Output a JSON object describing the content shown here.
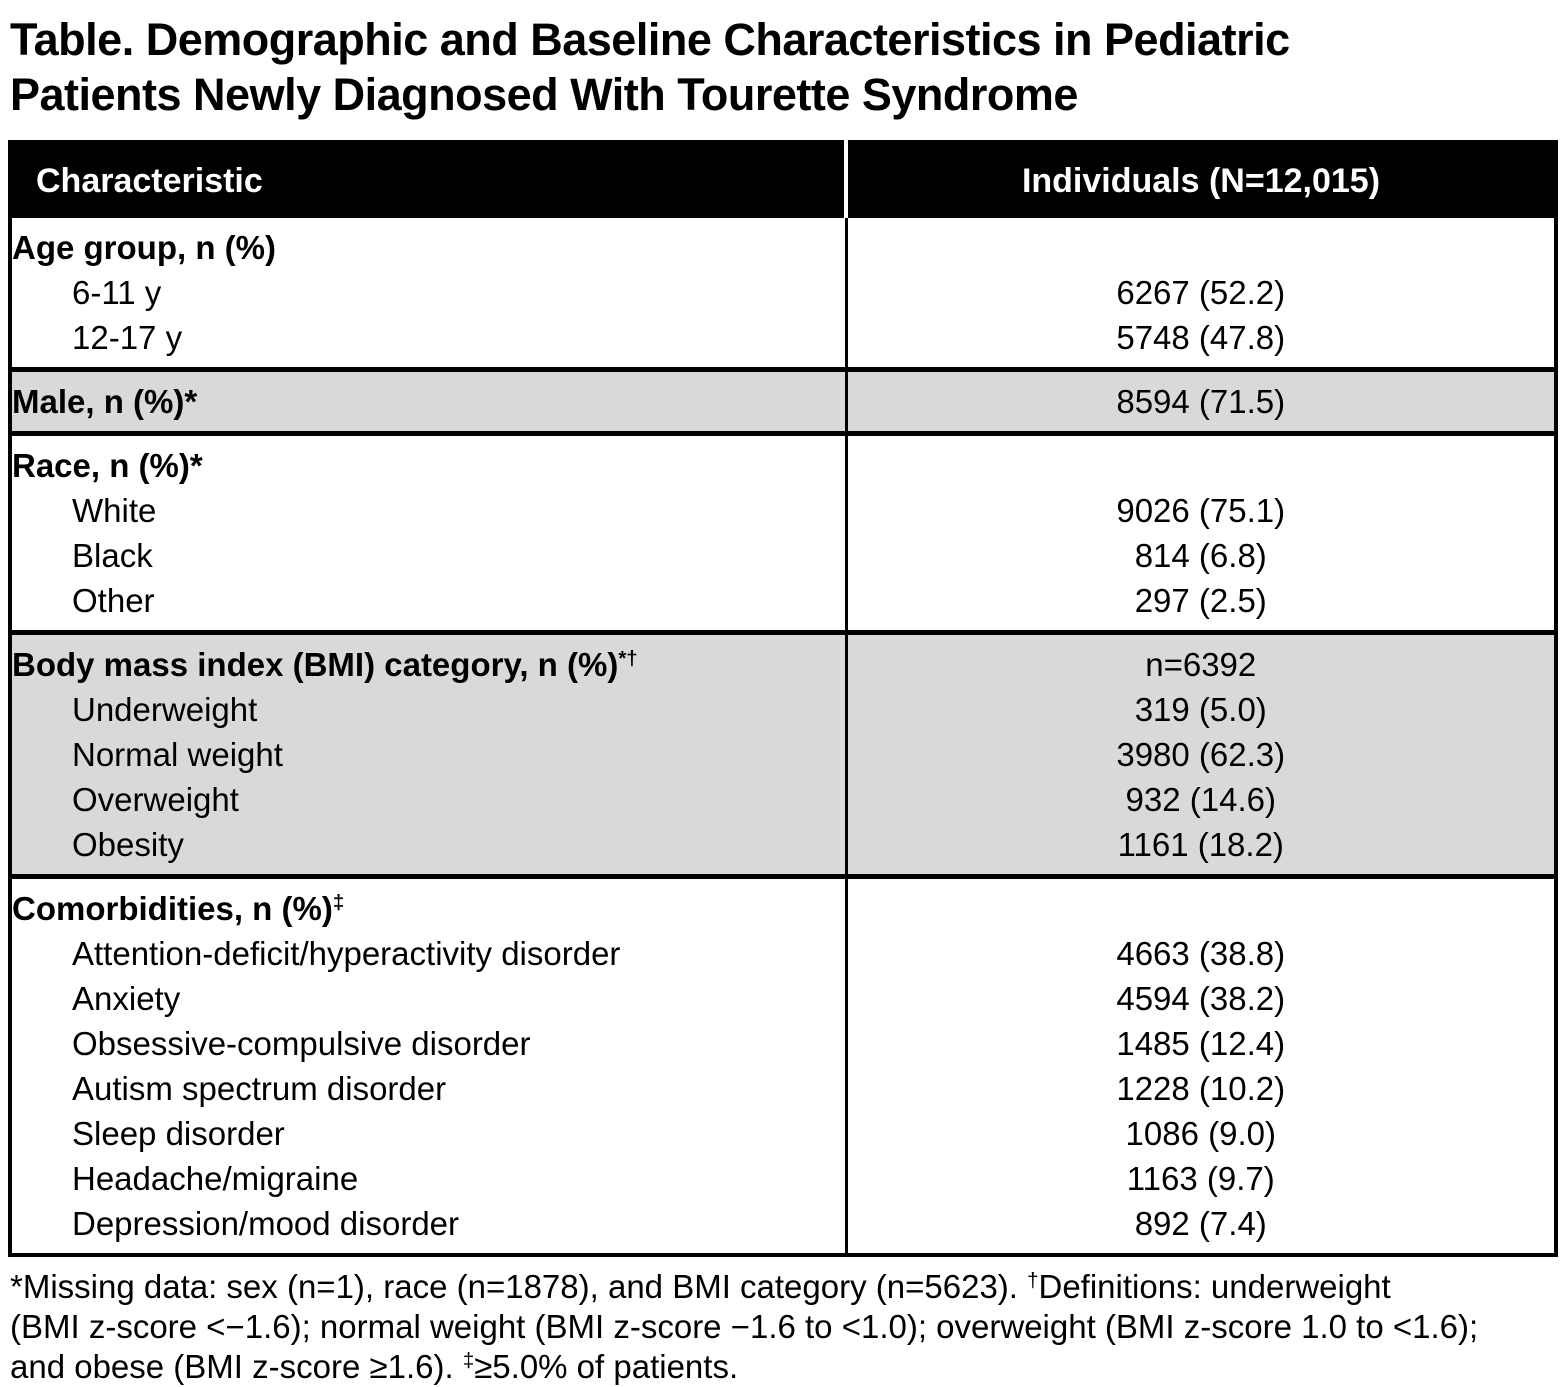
{
  "title": {
    "line1": "Table. Demographic and Baseline Characteristics in Pediatric",
    "line2": "Patients Newly Diagnosed With Tourette Syndrome"
  },
  "colors": {
    "header_bg": "#000000",
    "header_text": "#ffffff",
    "shaded_row_bg": "#d9d9d9",
    "border": "#000000"
  },
  "table": {
    "header": {
      "characteristic": "Characteristic",
      "individuals": "Individuals (N=12,015)"
    },
    "sections": [
      {
        "shaded": false,
        "rows": [
          {
            "label": "Age group, n (%)",
            "sup": "",
            "bold": true,
            "indent": false,
            "value": ""
          },
          {
            "label": "6-11 y",
            "sup": "",
            "bold": false,
            "indent": true,
            "value": "6267 (52.2)"
          },
          {
            "label": "12-17 y",
            "sup": "",
            "bold": false,
            "indent": true,
            "value": "5748 (47.8)"
          }
        ]
      },
      {
        "shaded": true,
        "rows": [
          {
            "label": "Male, n (%)*",
            "sup": "",
            "bold": true,
            "indent": false,
            "value": "8594 (71.5)"
          }
        ]
      },
      {
        "shaded": false,
        "rows": [
          {
            "label": "Race, n (%)*",
            "sup": "",
            "bold": true,
            "indent": false,
            "value": ""
          },
          {
            "label": "White",
            "sup": "",
            "bold": false,
            "indent": true,
            "value": "9026 (75.1)"
          },
          {
            "label": "Black",
            "sup": "",
            "bold": false,
            "indent": true,
            "value": "814 (6.8)"
          },
          {
            "label": "Other",
            "sup": "",
            "bold": false,
            "indent": true,
            "value": "297 (2.5)"
          }
        ]
      },
      {
        "shaded": true,
        "rows": [
          {
            "label": "Body mass index (BMI) category, n (%)",
            "sup": "*†",
            "bold": true,
            "indent": false,
            "value": "n=6392"
          },
          {
            "label": "Underweight",
            "sup": "",
            "bold": false,
            "indent": true,
            "value": "319 (5.0)"
          },
          {
            "label": "Normal weight",
            "sup": "",
            "bold": false,
            "indent": true,
            "value": "3980 (62.3)"
          },
          {
            "label": "Overweight",
            "sup": "",
            "bold": false,
            "indent": true,
            "value": "932 (14.6)"
          },
          {
            "label": "Obesity",
            "sup": "",
            "bold": false,
            "indent": true,
            "value": "1161 (18.2)"
          }
        ]
      },
      {
        "shaded": false,
        "rows": [
          {
            "label": "Comorbidities, n (%)",
            "sup": "‡",
            "bold": true,
            "indent": false,
            "value": ""
          },
          {
            "label": "Attention-deficit/hyperactivity disorder",
            "sup": "",
            "bold": false,
            "indent": true,
            "value": "4663 (38.8)"
          },
          {
            "label": "Anxiety",
            "sup": "",
            "bold": false,
            "indent": true,
            "value": "4594 (38.2)"
          },
          {
            "label": "Obsessive-compulsive disorder",
            "sup": "",
            "bold": false,
            "indent": true,
            "value": "1485 (12.4)"
          },
          {
            "label": "Autism spectrum disorder",
            "sup": "",
            "bold": false,
            "indent": true,
            "value": "1228 (10.2)"
          },
          {
            "label": "Sleep disorder",
            "sup": "",
            "bold": false,
            "indent": true,
            "value": "1086 (9.0)"
          },
          {
            "label": "Headache/migraine",
            "sup": "",
            "bold": false,
            "indent": true,
            "value": "1163 (9.7)"
          },
          {
            "label": "Depression/mood disorder",
            "sup": "",
            "bold": false,
            "indent": true,
            "value": "892 (7.4)"
          }
        ]
      }
    ]
  },
  "footnote": [
    {
      "text": "*Missing data: sex (n=1), race (n=1878), and BMI category (n=5623). "
    },
    {
      "sup": "†"
    },
    {
      "text": "Definitions: underweight"
    },
    {
      "br": true
    },
    {
      "text": "(BMI z-score <−1.6); normal weight (BMI z-score −1.6 to <1.0); overweight (BMI z-score 1.0 to <1.6);"
    },
    {
      "br": true
    },
    {
      "text": "and obese (BMI z-score ≥1.6). "
    },
    {
      "sup": "‡"
    },
    {
      "text": "≥5.0% of patients."
    }
  ]
}
